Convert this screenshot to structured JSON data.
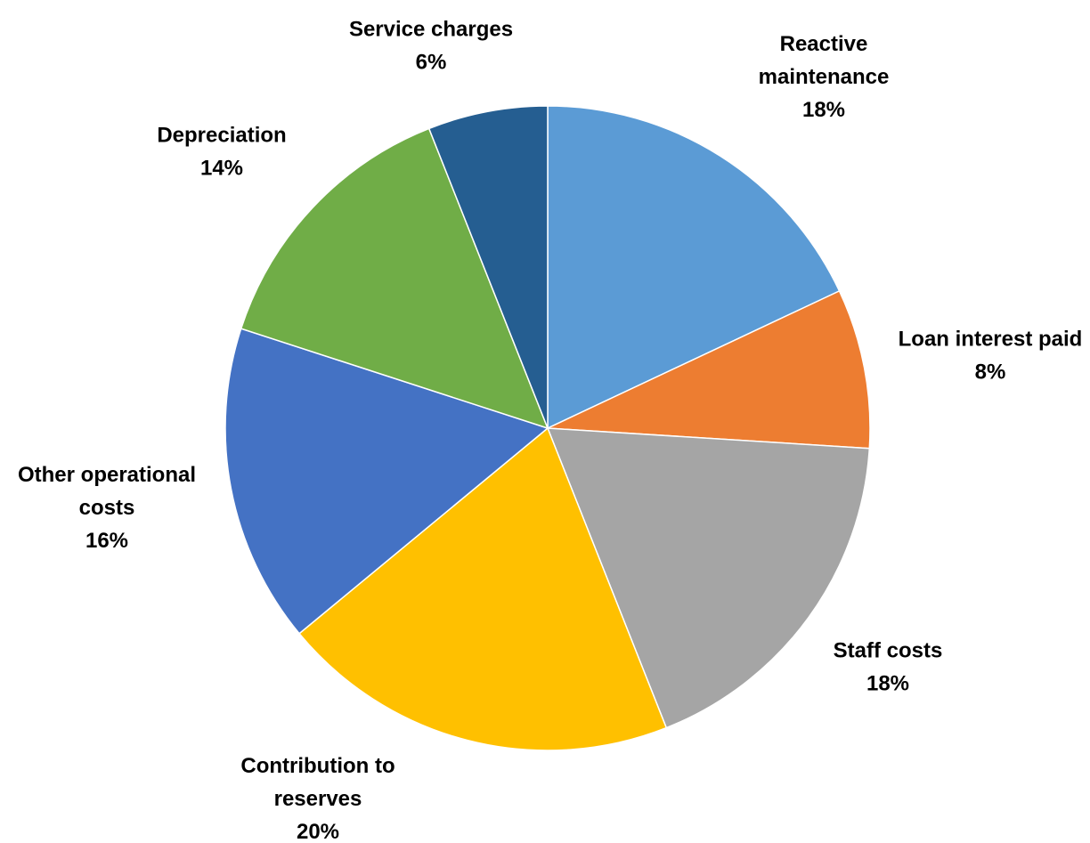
{
  "chart_data": {
    "type": "pie",
    "title": "",
    "start": "12 o'clock",
    "direction": "clockwise",
    "slices": [
      {
        "name": "Reactive maintenance",
        "label_lines": [
          "Reactive",
          "maintenance"
        ],
        "percent_label": "18%",
        "value": 18,
        "color": "#5B9BD5"
      },
      {
        "name": "Loan interest paid",
        "label_lines": [
          "Loan interest paid"
        ],
        "percent_label": "8%",
        "value": 8,
        "color": "#ED7D31"
      },
      {
        "name": "Staff costs",
        "label_lines": [
          "Staff costs"
        ],
        "percent_label": "18%",
        "value": 18,
        "color": "#A5A5A5"
      },
      {
        "name": "Contribution to reserves",
        "label_lines": [
          "Contribution to",
          "reserves"
        ],
        "percent_label": "20%",
        "value": 20,
        "color": "#FFC000"
      },
      {
        "name": "Other operational costs",
        "label_lines": [
          "Other operational",
          "costs"
        ],
        "percent_label": "16%",
        "value": 16,
        "color": "#4472C4"
      },
      {
        "name": "Depreciation",
        "label_lines": [
          "Depreciation"
        ],
        "percent_label": "14%",
        "value": 14,
        "color": "#70AD47"
      },
      {
        "name": "Service charges",
        "label_lines": [
          "Service charges"
        ],
        "percent_label": "6%",
        "value": 6,
        "color": "#255E91"
      }
    ]
  }
}
